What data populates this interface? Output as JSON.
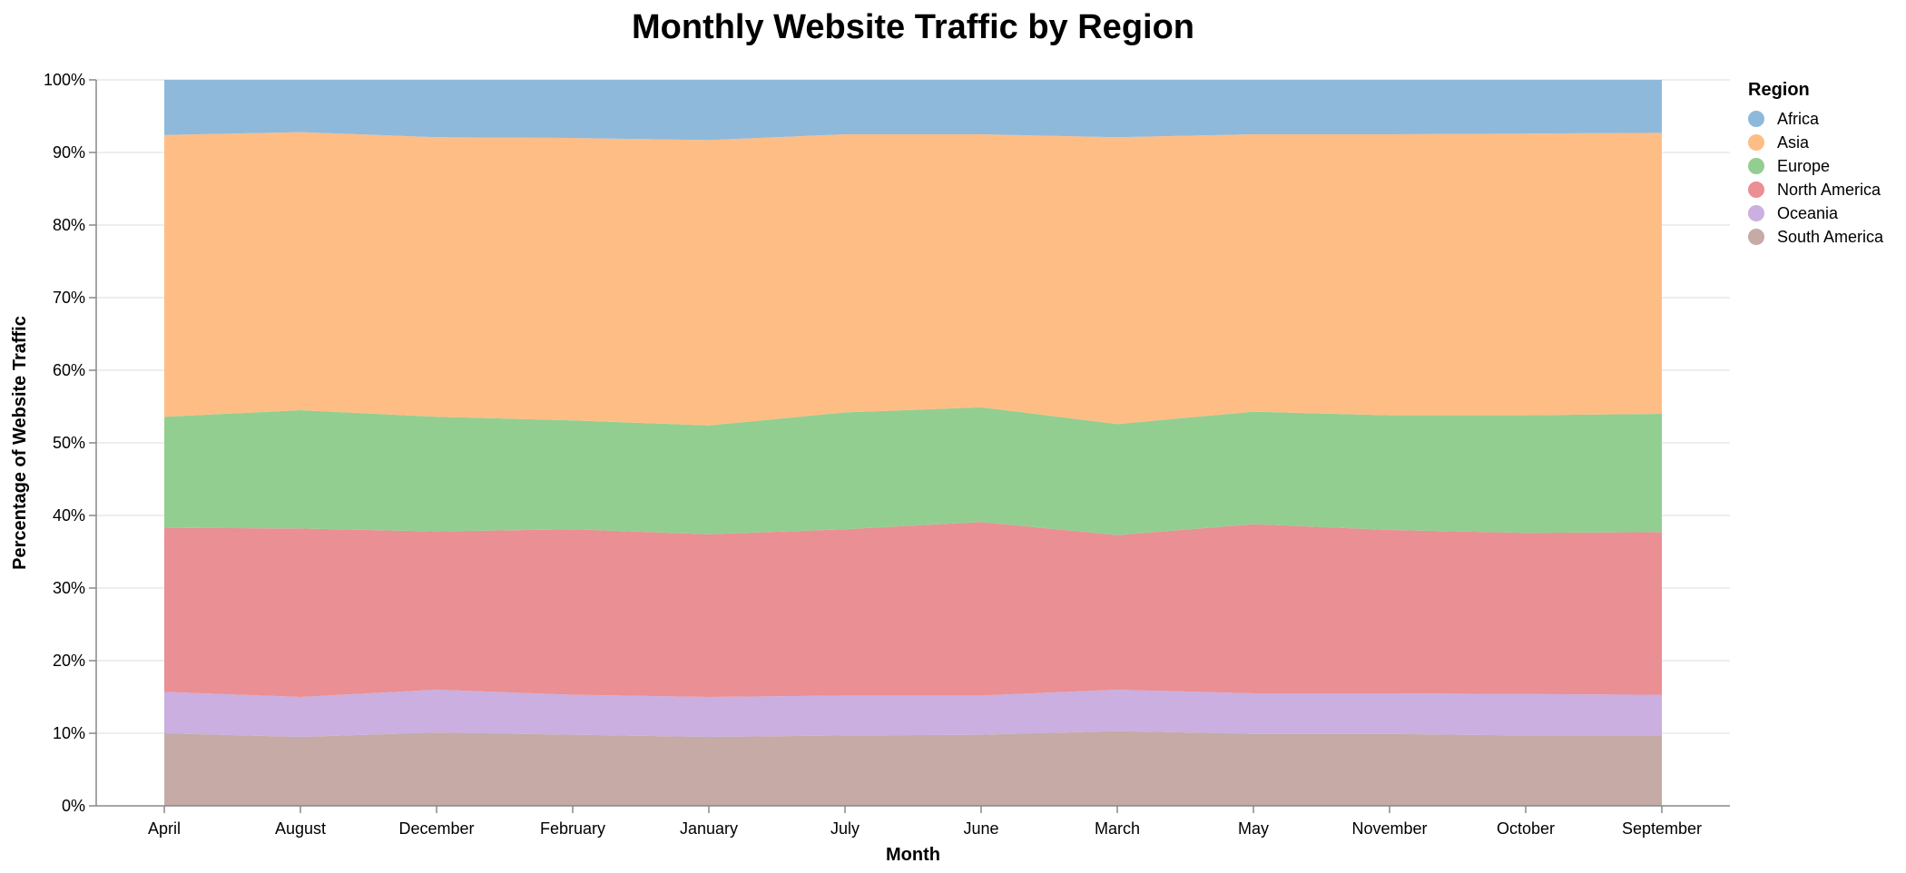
{
  "chart_data": {
    "type": "area",
    "stacked": "normalize",
    "title": "Monthly Website Traffic by Region",
    "xlabel": "Month",
    "ylabel": "Percentage of Website Traffic",
    "ylim": [
      0,
      1
    ],
    "yticks": [
      "0%",
      "10%",
      "20%",
      "30%",
      "40%",
      "50%",
      "60%",
      "70%",
      "80%",
      "90%",
      "100%"
    ],
    "grid": true,
    "categories": [
      "April",
      "August",
      "December",
      "February",
      "January",
      "July",
      "June",
      "March",
      "May",
      "November",
      "October",
      "September"
    ],
    "legend": {
      "title": "Region",
      "placement": "right"
    },
    "series": [
      {
        "name": "South America",
        "color": "#c5aaa5",
        "values": [
          0.1,
          0.095,
          0.101,
          0.098,
          0.095,
          0.097,
          0.098,
          0.103,
          0.099,
          0.099,
          0.097,
          0.097
        ]
      },
      {
        "name": "Oceania",
        "color": "#caafe0",
        "values": [
          0.057,
          0.055,
          0.059,
          0.055,
          0.055,
          0.055,
          0.054,
          0.057,
          0.056,
          0.056,
          0.057,
          0.056
        ]
      },
      {
        "name": "North America",
        "color": "#ea8f93",
        "values": [
          0.226,
          0.232,
          0.218,
          0.228,
          0.224,
          0.229,
          0.239,
          0.213,
          0.233,
          0.225,
          0.222,
          0.224
        ]
      },
      {
        "name": "Europe",
        "color": "#93ce91",
        "values": [
          0.153,
          0.163,
          0.158,
          0.15,
          0.15,
          0.161,
          0.158,
          0.153,
          0.155,
          0.158,
          0.162,
          0.163
        ]
      },
      {
        "name": "Asia",
        "color": "#ffbd86",
        "values": [
          0.388,
          0.383,
          0.385,
          0.389,
          0.393,
          0.383,
          0.376,
          0.395,
          0.382,
          0.387,
          0.388,
          0.387
        ]
      },
      {
        "name": "Africa",
        "color": "#8fb9da",
        "values": [
          0.076,
          0.072,
          0.079,
          0.08,
          0.083,
          0.075,
          0.075,
          0.079,
          0.075,
          0.075,
          0.074,
          0.073
        ]
      }
    ],
    "legend_entries": [
      {
        "name": "Africa",
        "color": "#8fb9da"
      },
      {
        "name": "Asia",
        "color": "#ffbd86"
      },
      {
        "name": "Europe",
        "color": "#93ce91"
      },
      {
        "name": "North America",
        "color": "#ea8f93"
      },
      {
        "name": "Oceania",
        "color": "#caafe0"
      },
      {
        "name": "South America",
        "color": "#c5aaa5"
      }
    ]
  }
}
